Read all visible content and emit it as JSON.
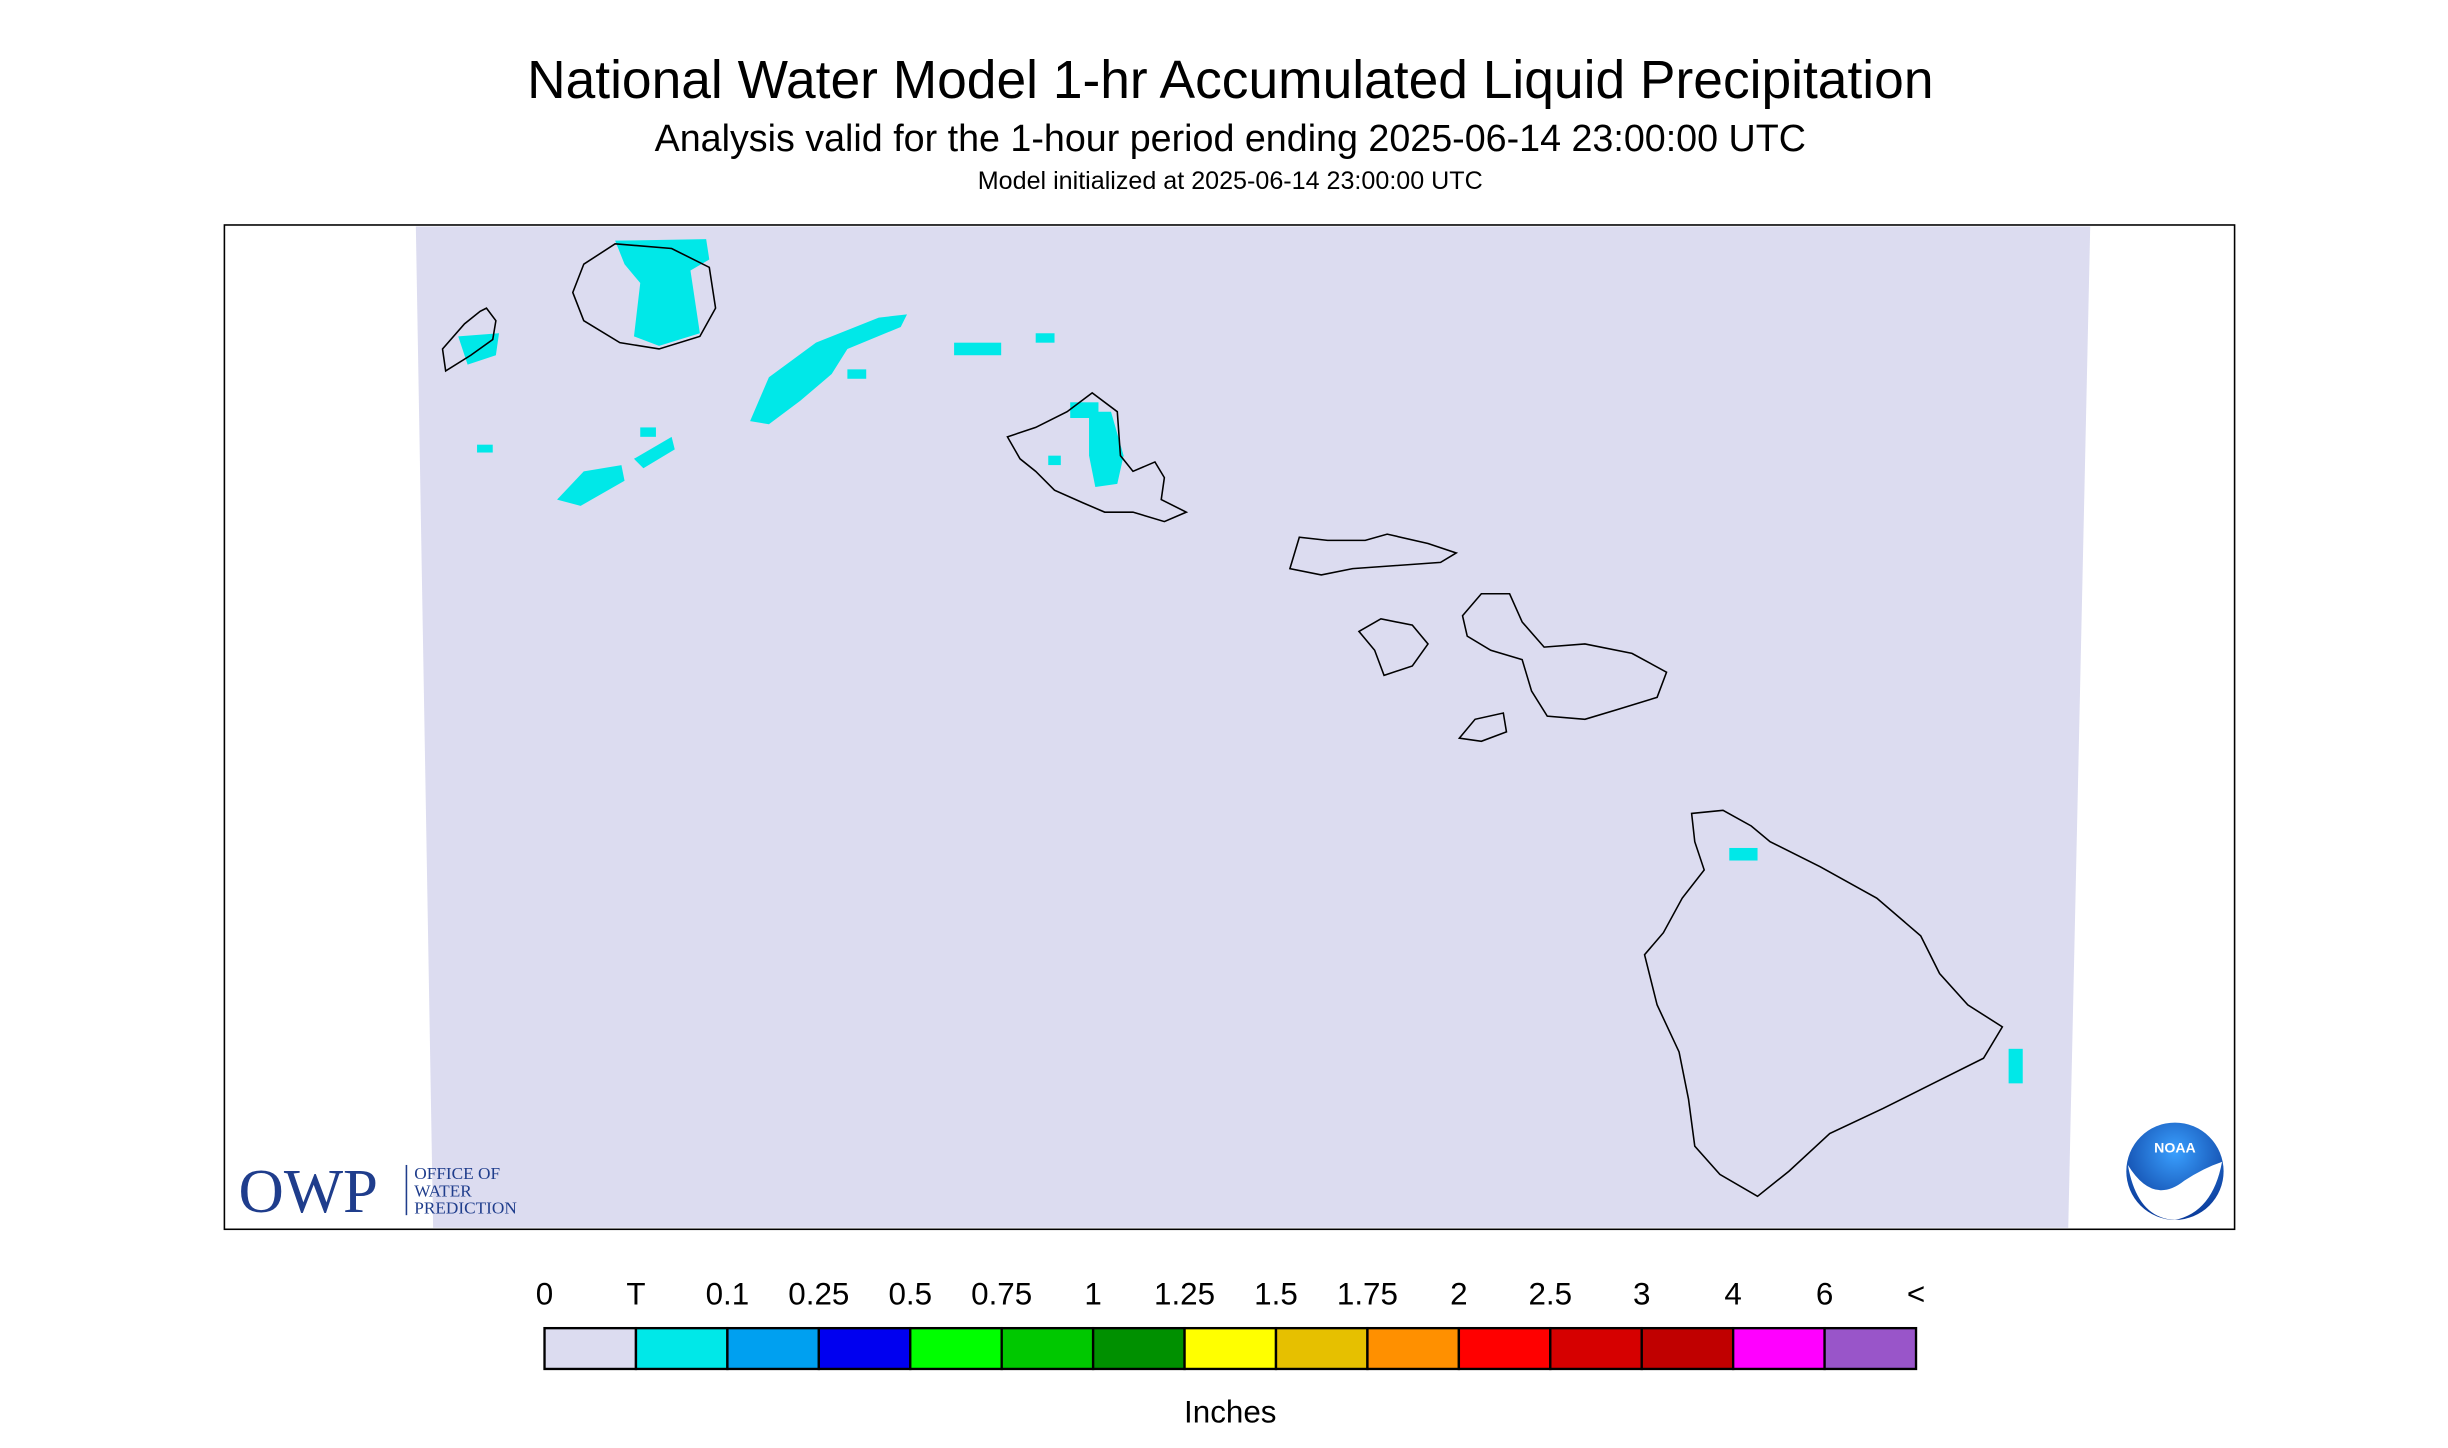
{
  "header": {
    "title": "National Water Model 1-hr Accumulated Liquid Precipitation",
    "subtitle": "Analysis valid for the 1-hour period ending 2025-06-14 23:00:00 UTC",
    "note": "Model initialized at 2025-06-14 23:00:00 UTC"
  },
  "logos": {
    "owp": "OWP",
    "owp_lines": [
      "OFFICE OF",
      "WATER",
      "PREDICTION"
    ],
    "noaa": "NOAA"
  },
  "legend": {
    "labels": [
      "0",
      "T",
      "0.1",
      "0.25",
      "0.5",
      "0.75",
      "1",
      "1.25",
      "1.5",
      "1.75",
      "2",
      "2.5",
      "3",
      "4",
      "6",
      "<"
    ],
    "colors": [
      "#dcdcf0",
      "#00e8e8",
      "#00a0f0",
      "#0000f0",
      "#00ff00",
      "#00c800",
      "#009000",
      "#ffff00",
      "#e6c000",
      "#ff9000",
      "#ff0000",
      "#d60000",
      "#c00000",
      "#ff00ff",
      "#9955c9"
    ],
    "unit": "Inches"
  }
}
